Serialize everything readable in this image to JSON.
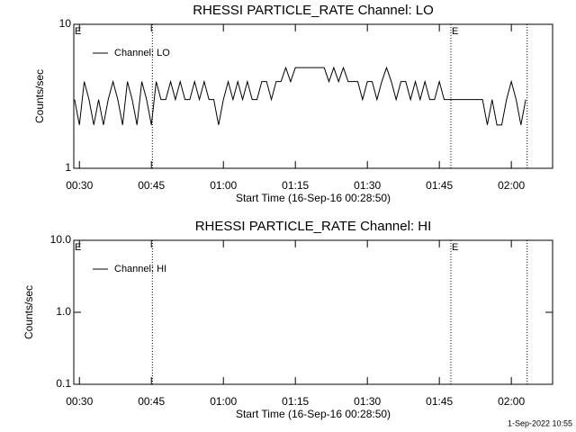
{
  "chart_data": [
    {
      "type": "line",
      "title": "RHESSI PARTICLE_RATE Channel: LO",
      "xlabel": "Start Time (16-Sep-16 00:28:50)",
      "ylabel": "Counts/sec",
      "x": [
        29,
        30,
        31,
        32,
        33,
        34,
        35,
        36,
        37,
        38,
        39,
        40,
        41,
        42,
        43,
        44,
        45,
        46,
        47,
        48,
        49,
        50,
        51,
        52,
        53,
        54,
        55,
        56,
        57,
        58,
        59,
        60,
        61,
        62,
        63,
        64,
        65,
        66,
        67,
        68,
        69,
        70,
        71,
        72,
        73,
        74,
        75,
        76,
        77,
        78,
        79,
        80,
        81,
        82,
        83,
        84,
        85,
        86,
        87,
        88,
        89,
        90,
        91,
        92,
        93,
        94,
        95,
        96,
        97,
        98,
        99,
        100,
        101,
        102,
        103,
        104,
        105,
        106,
        107,
        108,
        109,
        110,
        111,
        112,
        113,
        114,
        115,
        116,
        117,
        118,
        119,
        120,
        121,
        122,
        123
      ],
      "series": [
        {
          "name": "Channel: LO",
          "color": "#000000",
          "values": [
            3,
            2,
            4,
            3,
            2,
            3,
            2,
            3,
            4,
            3,
            2,
            4,
            3,
            2,
            4,
            3,
            2,
            4,
            3,
            3,
            4,
            3,
            4,
            3,
            3,
            4,
            3,
            4,
            3,
            3,
            2,
            3,
            4,
            3,
            4,
            3,
            4,
            3,
            3,
            4,
            4,
            3,
            4,
            4,
            5,
            4,
            5,
            5,
            5,
            5,
            5,
            5,
            5,
            4,
            5,
            4,
            5,
            4,
            4,
            4,
            3,
            4,
            4,
            3,
            4,
            5,
            4,
            3,
            4,
            4,
            3,
            4,
            3,
            4,
            3,
            3,
            4,
            3,
            3,
            3,
            3,
            3,
            3,
            3,
            3,
            3,
            2,
            3,
            2,
            2,
            3,
            4,
            3,
            2,
            3
          ]
        }
      ],
      "xlim": [
        28.83,
        128.6
      ],
      "xticks": [
        {
          "value": 30,
          "label": "00:30"
        },
        {
          "value": 45,
          "label": "00:45"
        },
        {
          "value": 60,
          "label": "01:00"
        },
        {
          "value": 75,
          "label": "01:15"
        },
        {
          "value": 90,
          "label": "01:30"
        },
        {
          "value": 105,
          "label": "01:45"
        },
        {
          "value": 120,
          "label": "02:00"
        }
      ],
      "ylim": [
        1,
        10
      ],
      "yticks": [
        1,
        10
      ],
      "log_scale": true,
      "markers": [
        {
          "x": 28.83,
          "label": "E"
        },
        {
          "x": 45.2
        },
        {
          "x": 107.4,
          "label": "E"
        },
        {
          "x": 123.3
        }
      ]
    },
    {
      "type": "line",
      "title": "RHESSI PARTICLE_RATE Channel: HI",
      "xlabel": "Start Time (16-Sep-16 00:28:50)",
      "ylabel": "Counts/sec",
      "x": [],
      "series": [
        {
          "name": "Channel: HI",
          "color": "#000000",
          "values": []
        }
      ],
      "xlim": [
        28.83,
        128.6
      ],
      "xticks": [
        {
          "value": 30,
          "label": "00:30"
        },
        {
          "value": 45,
          "label": "00:45"
        },
        {
          "value": 60,
          "label": "01:00"
        },
        {
          "value": 75,
          "label": "01:15"
        },
        {
          "value": 90,
          "label": "01:30"
        },
        {
          "value": 105,
          "label": "01:45"
        },
        {
          "value": 120,
          "label": "02:00"
        }
      ],
      "ylim": [
        0.1,
        10
      ],
      "yticks": [
        0.1,
        {
          "value": 1,
          "label": "1.0"
        },
        {
          "value": 10,
          "label": "10.0"
        }
      ],
      "log_scale": true,
      "markers": [
        {
          "x": 28.83,
          "label": "E"
        },
        {
          "x": 45.2
        },
        {
          "x": 107.4,
          "label": "E"
        },
        {
          "x": 123.3
        }
      ]
    }
  ],
  "footer": "1-Sep-2022 10:55"
}
